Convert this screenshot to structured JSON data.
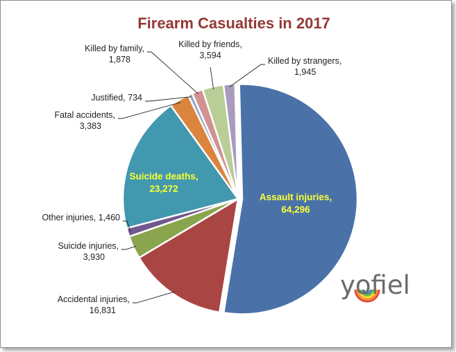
{
  "chart_data": {
    "type": "pie",
    "title": "Firearm Casualties in 2017",
    "title_color": "#953735",
    "slices": [
      {
        "label": "Assault injuries",
        "value": 64296,
        "value_text": "64,296",
        "color": "#4a72a8"
      },
      {
        "label": "Accidental injuries",
        "value": 16831,
        "value_text": "16,831",
        "color": "#a94543"
      },
      {
        "label": "Suicide injuries",
        "value": 3930,
        "value_text": "3,930",
        "color": "#89a54e"
      },
      {
        "label": "Other injuries",
        "value": 1460,
        "value_text": "1,460",
        "color": "#71588f"
      },
      {
        "label": "Suicide deaths",
        "value": 23272,
        "value_text": "23,272",
        "color": "#4198af"
      },
      {
        "label": "Fatal accidents",
        "value": 3383,
        "value_text": "3,383",
        "color": "#db843d"
      },
      {
        "label": "Justified",
        "value": 734,
        "value_text": "734",
        "color": "#93a9cf"
      },
      {
        "label": "Killed by family",
        "value": 1878,
        "value_text": "1,878",
        "color": "#d19392"
      },
      {
        "label": "Killed by friends",
        "value": 3594,
        "value_text": "3,594",
        "color": "#b9cd96"
      },
      {
        "label": "Killed by strangers",
        "value": 1945,
        "value_text": "1,945",
        "color": "#a99bbd"
      }
    ],
    "legend": "none"
  },
  "logo": {
    "text": "yofiel"
  }
}
